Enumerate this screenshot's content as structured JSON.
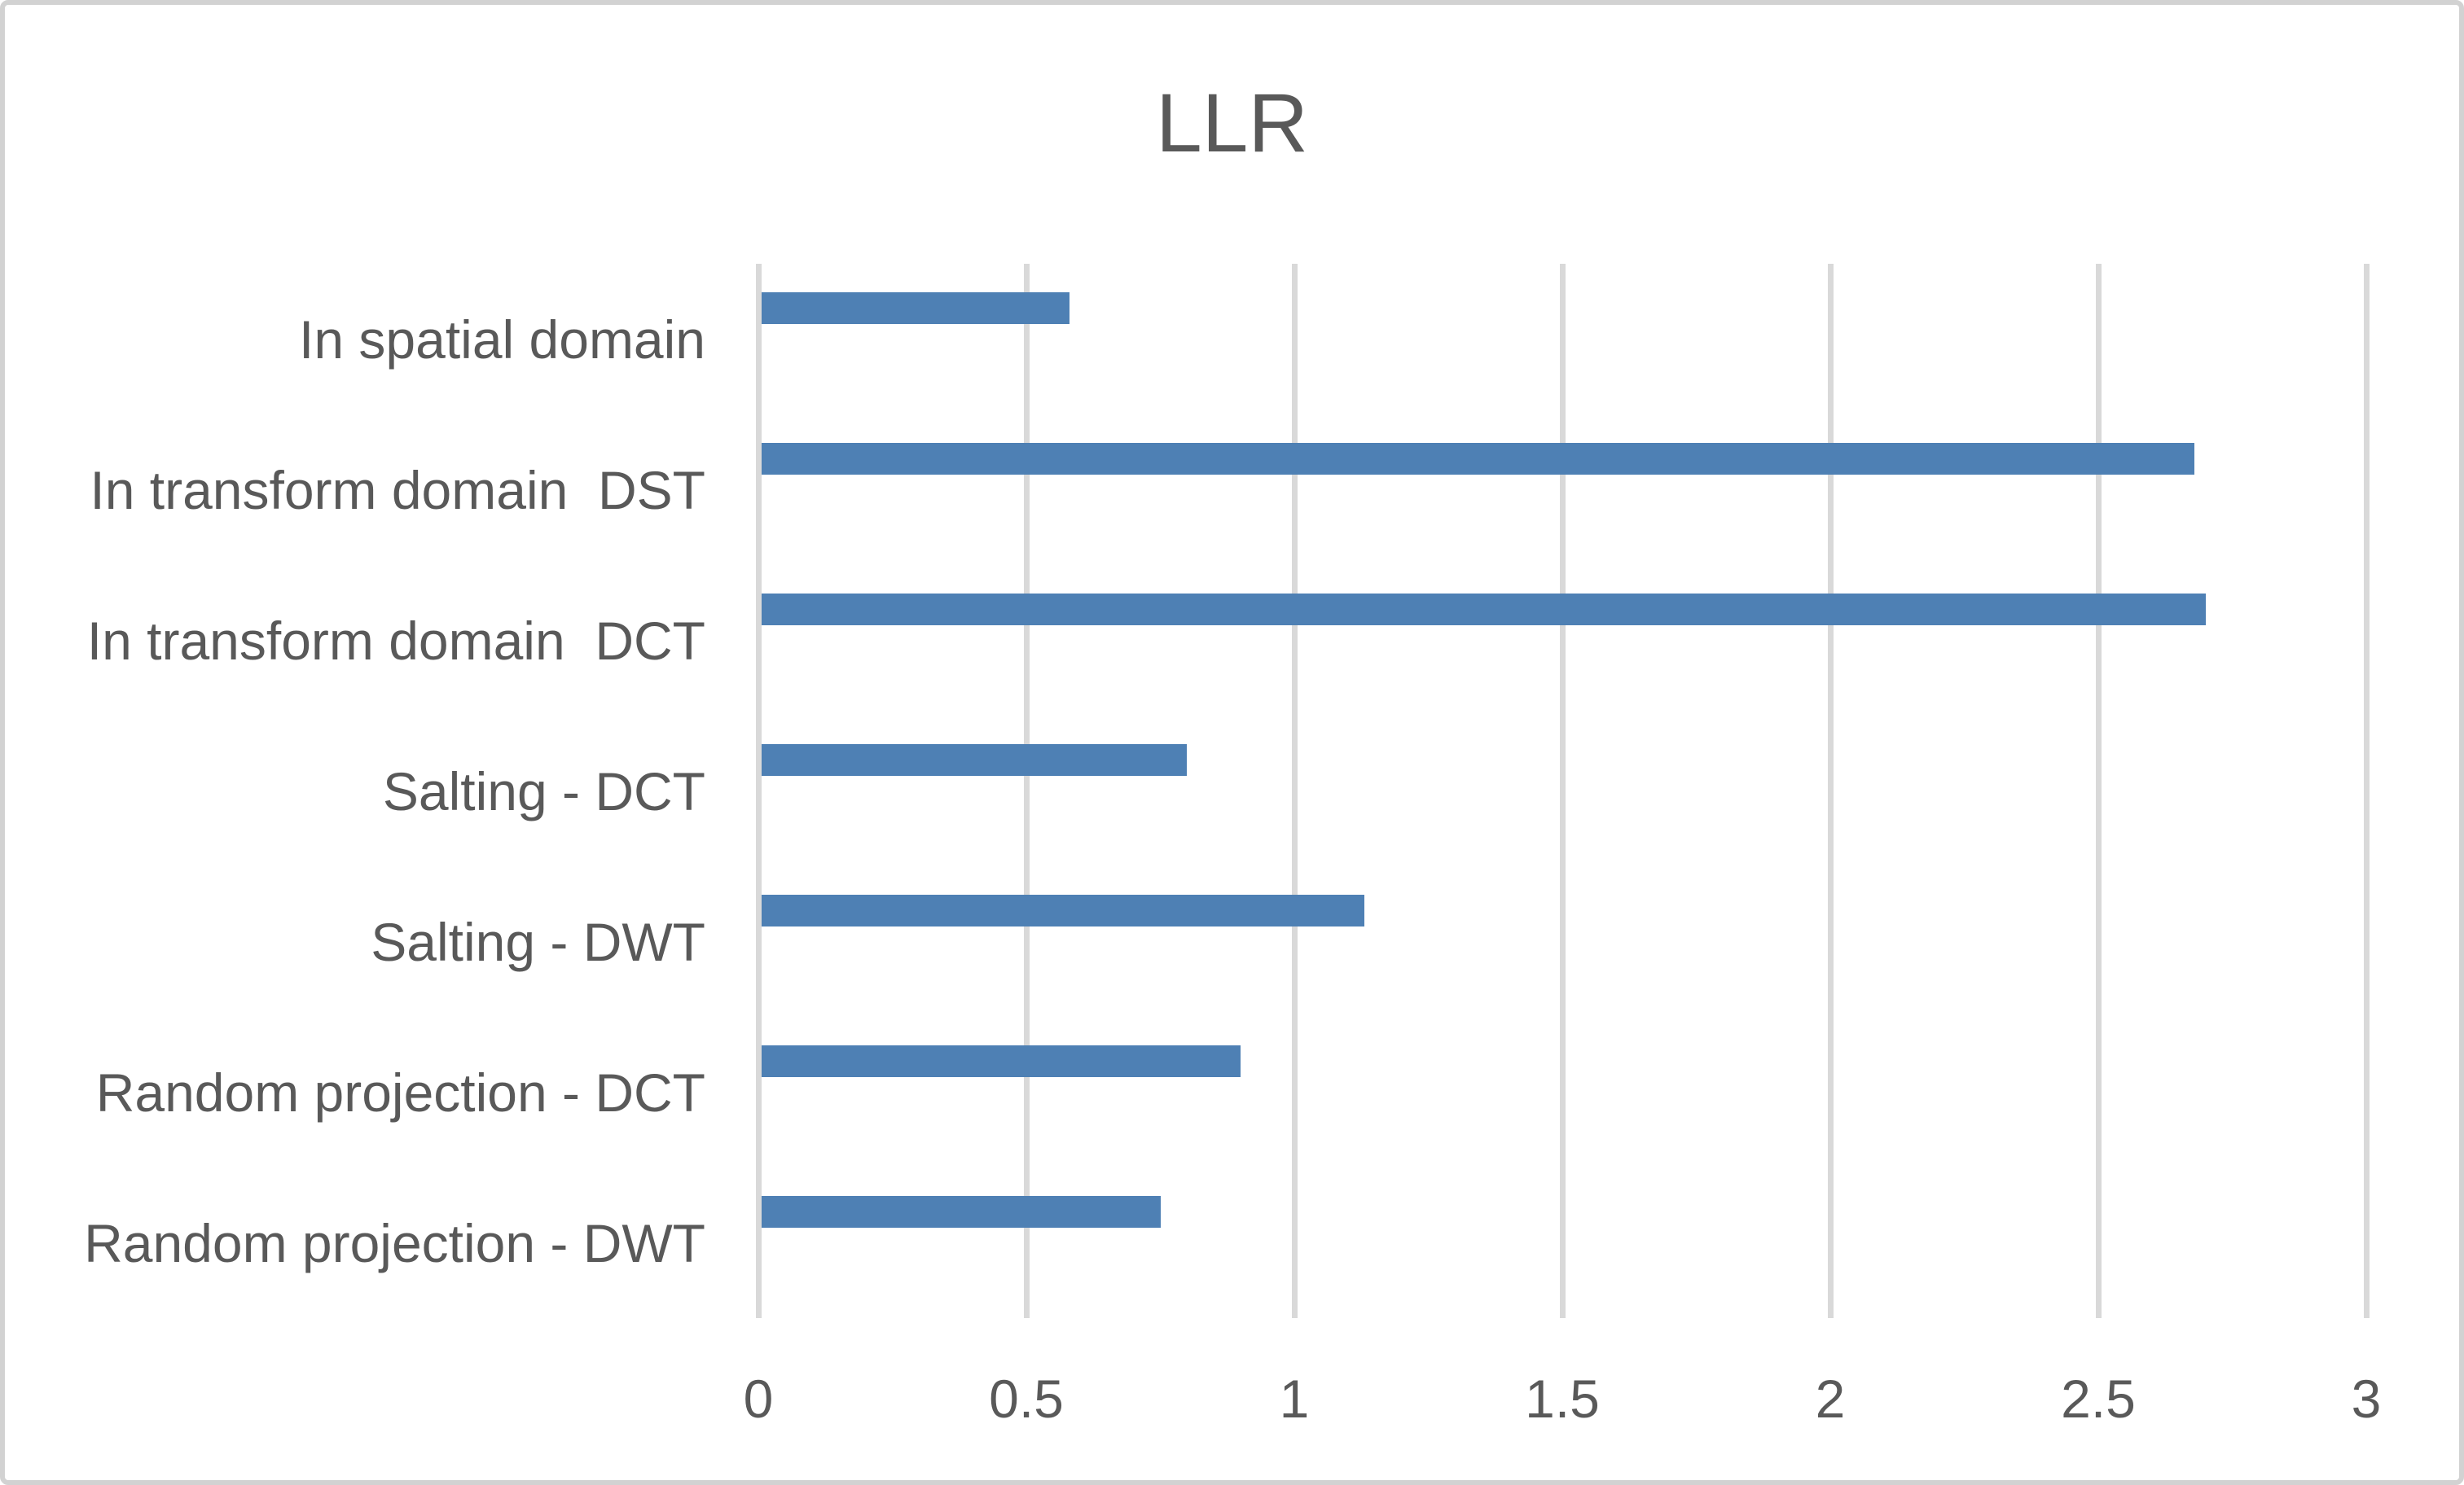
{
  "title": "LLR",
  "chart_data": {
    "type": "bar",
    "orientation": "horizontal",
    "title": "LLR",
    "categories": [
      "In spatial domain",
      "In transform domain  DST",
      "In transform domain  DCT",
      "Salting - DCT",
      "Salting - DWT",
      "Random projection - DCT",
      "Random projection - DWT"
    ],
    "values": [
      0.58,
      2.68,
      2.7,
      0.8,
      1.13,
      0.9,
      0.75
    ],
    "xlabel": "",
    "ylabel": "",
    "xlim": [
      0,
      3
    ],
    "x_ticks": [
      0,
      0.5,
      1,
      1.5,
      2,
      2.5,
      3
    ],
    "x_tick_labels": [
      "0",
      "0.5",
      "1",
      "1.5",
      "2",
      "2.5",
      "3"
    ],
    "grid": true,
    "legend": false,
    "colors": {
      "bar": "#4E80B4",
      "gridline": "#D9D9D9",
      "axis_line": "#D9D9D9",
      "text": "#595959"
    }
  }
}
